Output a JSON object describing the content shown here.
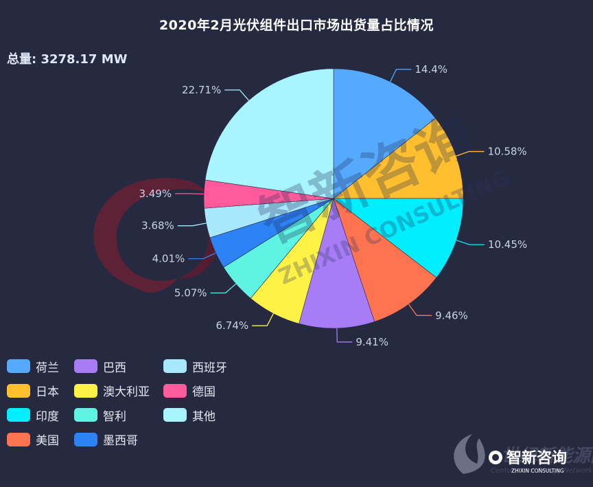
{
  "chart_data": {
    "type": "pie",
    "title": "2020年2月光伏组件出口市场出货量占比情况",
    "subtitle": "总量: 3278.17 MW",
    "slices": [
      {
        "name": "荷兰",
        "value": 14.4,
        "label": "14.4%",
        "color": "#55aaff"
      },
      {
        "name": "日本",
        "value": 10.58,
        "label": "10.58%",
        "color": "#ffbf2f"
      },
      {
        "name": "印度",
        "value": 10.45,
        "label": "10.45%",
        "color": "#00eeff"
      },
      {
        "name": "美国",
        "value": 9.46,
        "label": "9.46%",
        "color": "#ff7350"
      },
      {
        "name": "巴西",
        "value": 9.41,
        "label": "9.41%",
        "color": "#a87cf6"
      },
      {
        "name": "澳大利亚",
        "value": 6.74,
        "label": "6.74%",
        "color": "#fff247"
      },
      {
        "name": "智利",
        "value": 5.07,
        "label": "5.07%",
        "color": "#5ef3e2"
      },
      {
        "name": "墨西哥",
        "value": 4.01,
        "label": "4.01%",
        "color": "#2d83f5"
      },
      {
        "name": "西班牙",
        "value": 3.68,
        "label": "3.68%",
        "color": "#a8e8fc"
      },
      {
        "name": "德国",
        "value": 3.49,
        "label": "3.49%",
        "color": "#ff5b9c"
      },
      {
        "name": "其他",
        "value": 22.71,
        "label": "22.71%",
        "color": "#a8f5ff"
      }
    ],
    "legend_order": [
      "荷兰",
      "日本",
      "印度",
      "美国",
      "巴西",
      "澳大利亚",
      "智利",
      "墨西哥",
      "西班牙",
      "德国",
      "其他"
    ],
    "legend_placement": "bottom-left"
  },
  "watermark": {
    "main_text": "智新咨询",
    "sub_text": "ZHIXIN CONSULTING"
  },
  "corner_logo": {
    "main_text": "智新咨询",
    "sub_text": "ZHIXIN CONSULTING",
    "bg_text": "世纪新能源网",
    "bg_sub": "Century New Energy Network"
  }
}
